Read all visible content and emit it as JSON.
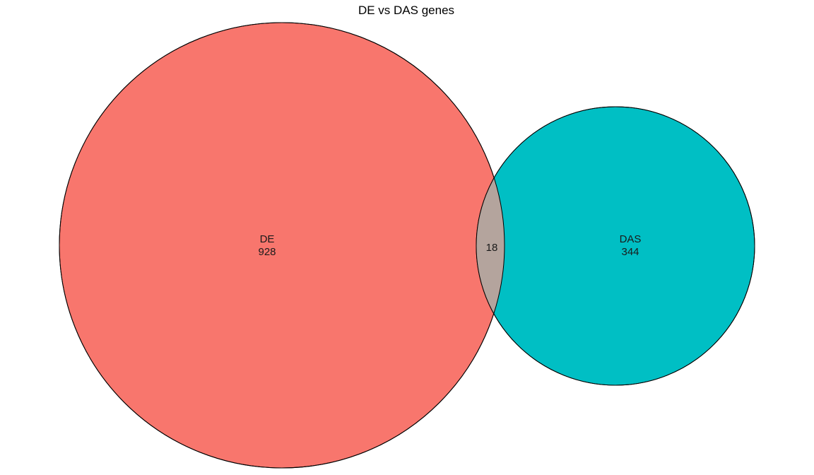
{
  "chart_data": {
    "type": "venn",
    "title": "DE vs DAS genes",
    "sets": [
      {
        "name": "DE",
        "count": 928,
        "color": "#F8766D"
      },
      {
        "name": "DAS",
        "count": 344,
        "color": "#00BFC4"
      }
    ],
    "intersection": {
      "count": 18,
      "color": "#B4A49D"
    },
    "outline_color": "#000000"
  }
}
